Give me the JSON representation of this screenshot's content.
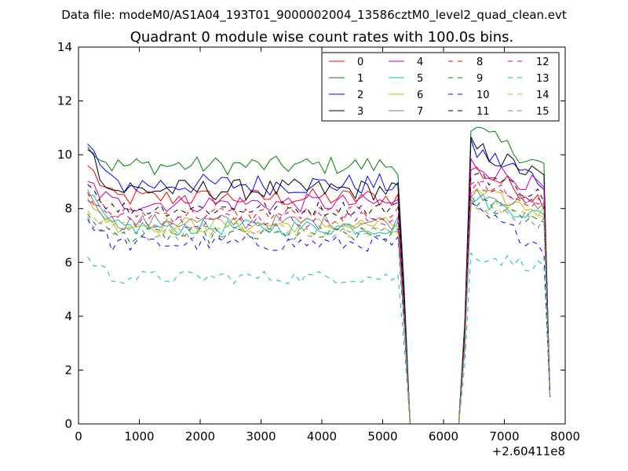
{
  "figure": {
    "subtitle": "Data file: modeM0/AS1A04_193T01_9000002004_13586cztM0_level2_quad_clean.evt"
  },
  "chart_data": {
    "type": "line",
    "title": "Quadrant 0 module wise count rates with 100.0s bins.",
    "xlabel": "",
    "ylabel": "",
    "x_offset_label": "+2.60411e8",
    "xlim": [
      0,
      8000
    ],
    "ylim": [
      0,
      14
    ],
    "xticks": [
      0,
      1000,
      2000,
      3000,
      4000,
      5000,
      6000,
      7000,
      8000
    ],
    "yticks": [
      0,
      2,
      4,
      6,
      8,
      10,
      12,
      14
    ],
    "legend_position": "top-right",
    "legend_columns": 4,
    "segment1_x": [
      150,
      5350,
      100
    ],
    "segment2_x": [
      6250,
      7750,
      100
    ],
    "gap": {
      "x": [
        5450,
        5550,
        5650,
        5750,
        5850,
        5950,
        6050,
        6150
      ],
      "value": 0
    },
    "series": [
      {
        "name": "0",
        "color": "#ff0000",
        "dashed": false,
        "base1": 8.4,
        "base2": 9.5,
        "slope2": -0.1,
        "noise": 0.35,
        "start": 9.6
      },
      {
        "name": "1",
        "color": "#008000",
        "dashed": false,
        "base1": 9.6,
        "base2": 11.0,
        "slope2": -0.12,
        "noise": 0.35,
        "start": 10.3
      },
      {
        "name": "2",
        "color": "#0000ff",
        "dashed": false,
        "base1": 8.9,
        "base2": 10.2,
        "slope2": -0.1,
        "noise": 0.4,
        "start": 10.4
      },
      {
        "name": "3",
        "color": "#000000",
        "dashed": false,
        "base1": 8.7,
        "base2": 10.3,
        "slope2": -0.1,
        "noise": 0.4,
        "start": 10.2
      },
      {
        "name": "4",
        "color": "#bf00bf",
        "dashed": false,
        "base1": 8.2,
        "base2": 9.7,
        "slope2": -0.08,
        "noise": 0.35,
        "start": 9.0
      },
      {
        "name": "5",
        "color": "#00bfbf",
        "dashed": false,
        "base1": 7.3,
        "base2": 8.4,
        "slope2": -0.06,
        "noise": 0.3,
        "start": 8.5
      },
      {
        "name": "6",
        "color": "#bfbf00",
        "dashed": false,
        "base1": 7.4,
        "base2": 8.6,
        "slope2": -0.06,
        "noise": 0.3,
        "start": 8.4
      },
      {
        "name": "7",
        "color": "#808080",
        "dashed": false,
        "base1": 7.5,
        "base2": 8.7,
        "slope2": -0.06,
        "noise": 0.3,
        "start": 8.7
      },
      {
        "name": "8",
        "color": "#ff0000",
        "dashed": true,
        "base1": 7.8,
        "base2": 9.0,
        "slope2": -0.08,
        "noise": 0.3,
        "start": 8.6
      },
      {
        "name": "9",
        "color": "#008000",
        "dashed": true,
        "base1": 7.0,
        "base2": 8.3,
        "slope2": -0.06,
        "noise": 0.3,
        "start": 7.8
      },
      {
        "name": "10",
        "color": "#0000ff",
        "dashed": true,
        "base1": 6.7,
        "base2": 8.0,
        "slope2": -0.12,
        "noise": 0.3,
        "start": 7.6
      },
      {
        "name": "11",
        "color": "#000000",
        "dashed": true,
        "base1": 8.0,
        "base2": 9.4,
        "slope2": -0.08,
        "noise": 0.3,
        "start": 8.9
      },
      {
        "name": "12",
        "color": "#bf00bf",
        "dashed": true,
        "base1": 7.6,
        "base2": 8.9,
        "slope2": -0.06,
        "noise": 0.3,
        "start": 8.3
      },
      {
        "name": "13",
        "color": "#00bfbf",
        "dashed": true,
        "base1": 5.45,
        "base2": 6.3,
        "slope2": -0.04,
        "noise": 0.25,
        "start": 6.2
      },
      {
        "name": "14",
        "color": "#bfbf00",
        "dashed": true,
        "base1": 7.2,
        "base2": 8.3,
        "slope2": -0.06,
        "noise": 0.3,
        "start": 7.9
      },
      {
        "name": "15",
        "color": "#808080",
        "dashed": true,
        "base1": 7.1,
        "base2": 8.2,
        "slope2": -0.06,
        "noise": 0.3,
        "start": 7.7
      }
    ]
  }
}
